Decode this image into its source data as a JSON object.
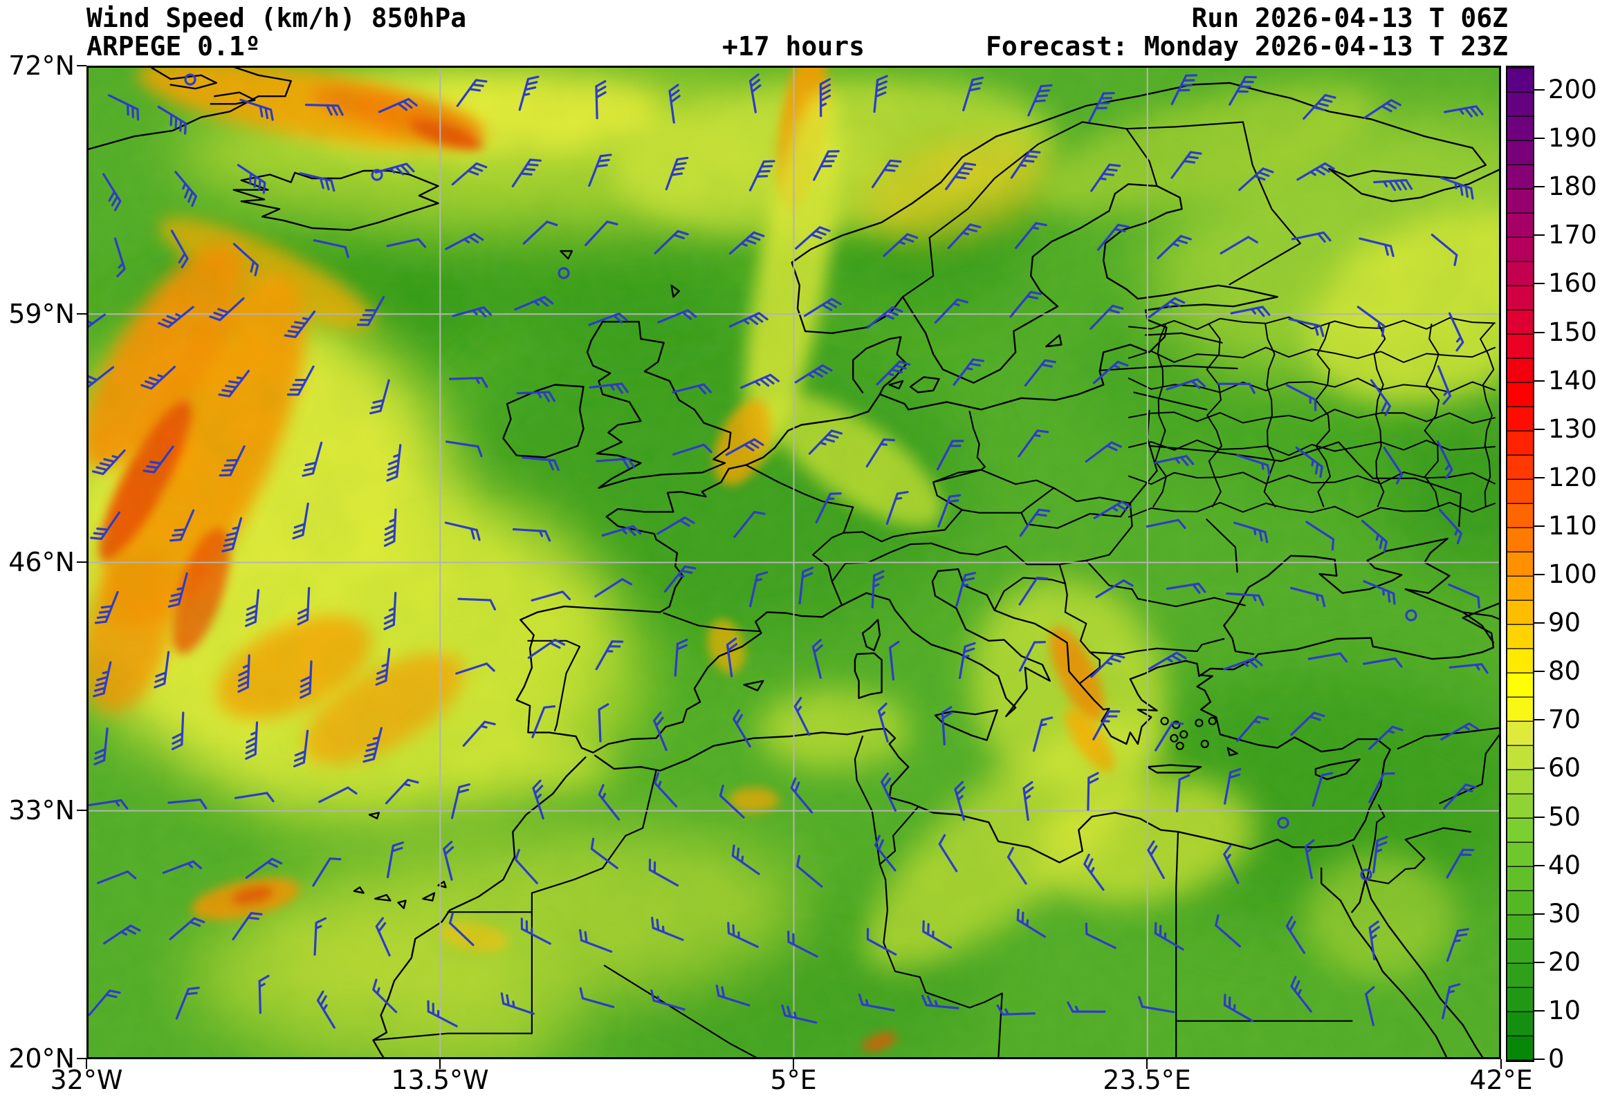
{
  "header": {
    "product_title": "Wind Speed (km/h) 850hPa",
    "model_title": "ARPEGE 0.1º",
    "lead_time": "+17 hours",
    "run_label": "Run 2026-04-13 T 06Z",
    "valid_label": "Forecast: Monday 2026-04-13 T 23Z"
  },
  "axes": {
    "lat_ticks": [
      "72°N",
      "59°N",
      "46°N",
      "33°N",
      "20°N"
    ],
    "lon_ticks": [
      "32°W",
      "13.5°W",
      "5°E",
      "23.5°E",
      "42°E"
    ]
  },
  "map": {
    "region": "Europe, North Atlantic and North Africa",
    "extent": {
      "lon_min": -32,
      "lon_max": 42,
      "lat_min": 20,
      "lat_max": 72
    },
    "grid_lats": [
      59,
      46,
      33
    ],
    "grid_lons": [
      -13.5,
      5,
      23.5
    ],
    "gridline_color": "#b4b4b4",
    "coastline_color": "#000000",
    "border_color": "#000000",
    "wind_barb_color": "#2e3cc8",
    "sea_base_color": "#52ad28"
  },
  "colorbar": {
    "unit": "km/h",
    "min": 0,
    "max": 205,
    "segment_step": 5,
    "tick_step": 10,
    "tick_labels": [
      "0",
      "10",
      "20",
      "30",
      "40",
      "50",
      "60",
      "70",
      "80",
      "90",
      "100",
      "110",
      "120",
      "130",
      "140",
      "150",
      "160",
      "170",
      "180",
      "190",
      "200"
    ],
    "segment_colors": [
      "#078707",
      "#149010",
      "#219815",
      "#2ea019",
      "#3aa81d",
      "#47b021",
      "#54b825",
      "#61c029",
      "#6ec82d",
      "#7bcf31",
      "#8fd434",
      "#a5da37",
      "#c2e23a",
      "#e0ea3d",
      "#f8f715",
      "#ffff00",
      "#ffe900",
      "#ffd300",
      "#ffbd00",
      "#ffa700",
      "#ff9100",
      "#ff7b00",
      "#ff6500",
      "#ff4f00",
      "#ff3900",
      "#ff2300",
      "#ff0d00",
      "#fc0000",
      "#f3000f",
      "#e90023",
      "#de0033",
      "#d10042",
      "#c30050",
      "#b4005c",
      "#a50066",
      "#96006e",
      "#870075",
      "#79007a",
      "#6f007e",
      "#650081",
      "#5b0084"
    ]
  }
}
